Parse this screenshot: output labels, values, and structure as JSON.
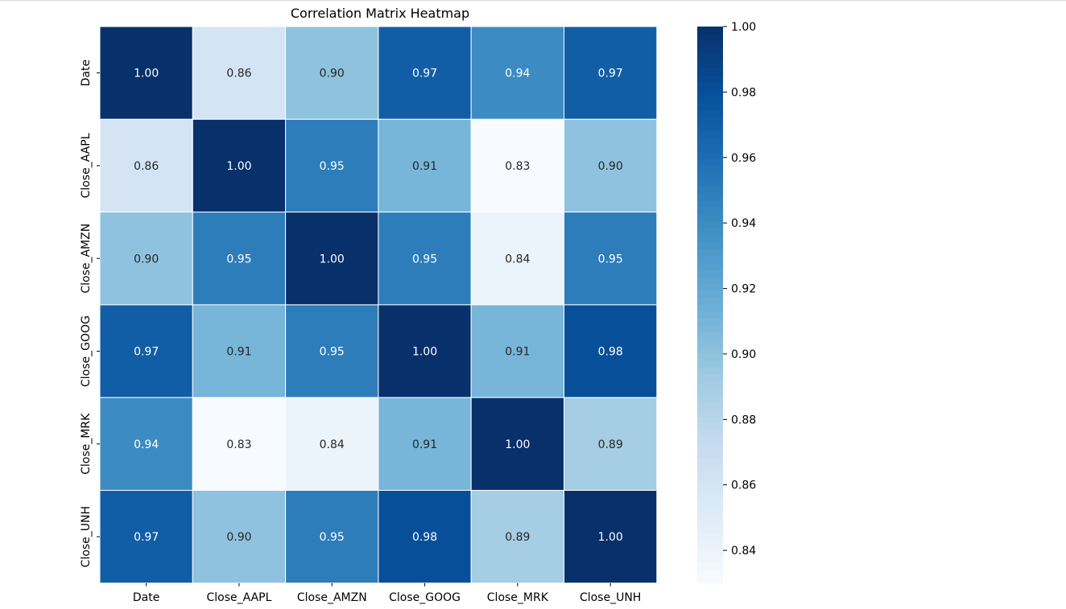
{
  "chart_data": {
    "type": "heatmap",
    "title": "Correlation Matrix Heatmap",
    "xlabel": "",
    "ylabel": "",
    "x_categories": [
      "Date",
      "Close_AAPL",
      "Close_AMZN",
      "Close_GOOG",
      "Close_MRK",
      "Close_UNH"
    ],
    "y_categories": [
      "Date",
      "Close_AAPL",
      "Close_AMZN",
      "Close_GOOG",
      "Close_MRK",
      "Close_UNH"
    ],
    "values": [
      [
        1.0,
        0.86,
        0.9,
        0.97,
        0.94,
        0.97
      ],
      [
        0.86,
        1.0,
        0.95,
        0.91,
        0.83,
        0.9
      ],
      [
        0.9,
        0.95,
        1.0,
        0.95,
        0.84,
        0.95
      ],
      [
        0.97,
        0.91,
        0.95,
        1.0,
        0.91,
        0.98
      ],
      [
        0.94,
        0.83,
        0.84,
        0.91,
        1.0,
        0.89
      ],
      [
        0.97,
        0.9,
        0.95,
        0.98,
        0.89,
        1.0
      ]
    ],
    "value_format": "0.00",
    "colormap": "Blues",
    "colorbar": {
      "range": [
        0.83,
        1.0
      ],
      "ticks": [
        0.84,
        0.86,
        0.88,
        0.9,
        0.92,
        0.94,
        0.96,
        0.98,
        1.0
      ],
      "placement": "right"
    },
    "grid": false,
    "cell_border_color": "#ffffff"
  }
}
